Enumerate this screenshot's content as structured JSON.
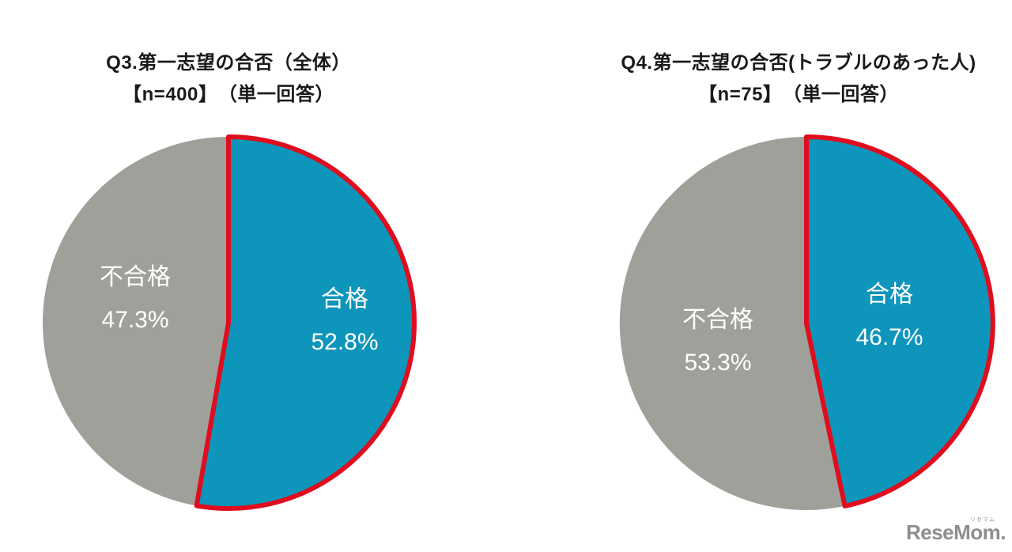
{
  "watermark": {
    "text": "ReseMom.",
    "ruby": "リセマム"
  },
  "chart_data": [
    {
      "type": "pie",
      "key": "q3",
      "title_line1": "Q3.第一志望の合否（全体）",
      "title_line2": "【n=400】　（単一回答）",
      "n": 400,
      "start_angle_deg": 0,
      "direction": "clockwise",
      "legend": "none",
      "label_color": "#ffffff",
      "slices": [
        {
          "key": "pass",
          "label": "合格",
          "value": 52.8,
          "display": "52.8%",
          "color": "#0e95bb",
          "outline": "#e00d1e"
        },
        {
          "key": "fail",
          "label": "不合格",
          "value": 47.3,
          "display": "47.3%",
          "color": "#a0a09b",
          "outline": null
        }
      ]
    },
    {
      "type": "pie",
      "key": "q4",
      "title_line1": "Q4.第一志望の合否(トラブルのあった人)",
      "title_line2": "【n=75】　（単一回答）",
      "n": 75,
      "start_angle_deg": 0,
      "direction": "clockwise",
      "legend": "none",
      "label_color": "#ffffff",
      "slices": [
        {
          "key": "pass",
          "label": "合格",
          "value": 46.7,
          "display": "46.7%",
          "color": "#0e95bb",
          "outline": "#e00d1e"
        },
        {
          "key": "fail",
          "label": "不合格",
          "value": 53.3,
          "display": "53.3%",
          "color": "#a0a09b",
          "outline": null
        }
      ]
    }
  ]
}
